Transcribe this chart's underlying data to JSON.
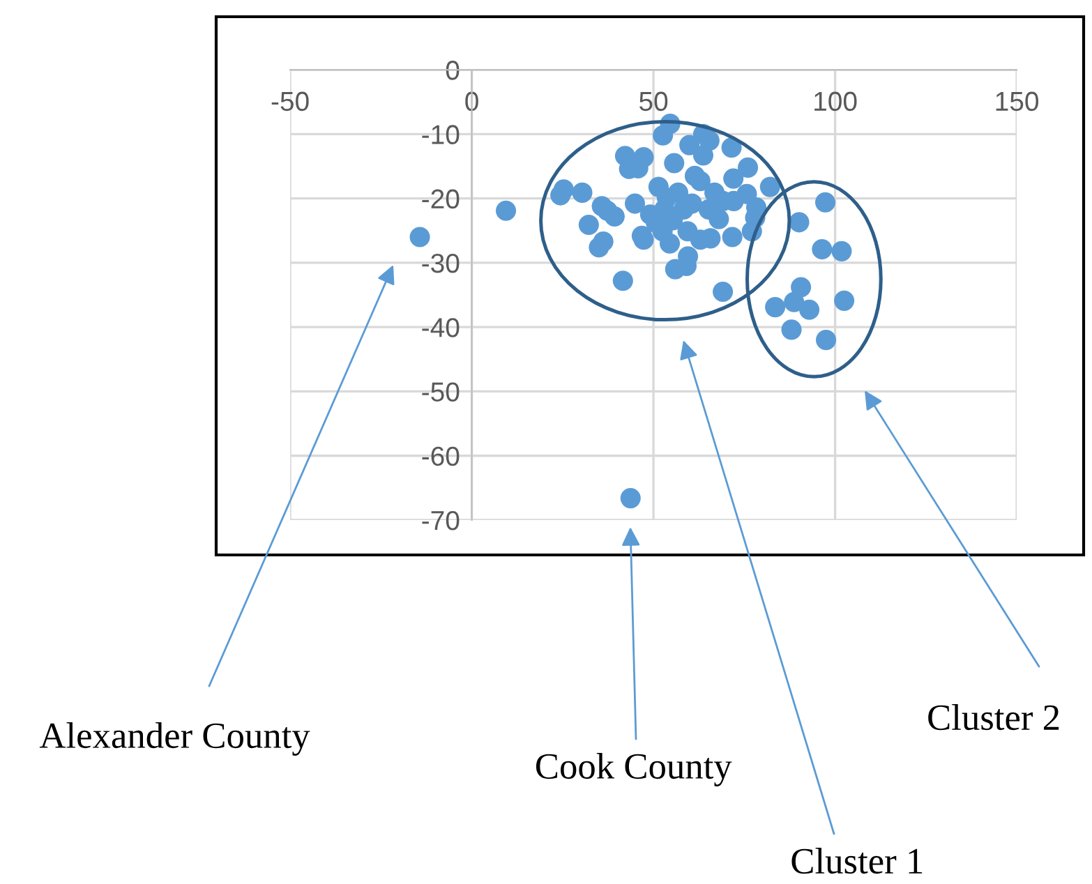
{
  "chart_data": {
    "type": "scatter",
    "color": "#5b9bd5",
    "marker": "circle",
    "grid": true,
    "legend": false,
    "xlim": [
      -50,
      150
    ],
    "ylim": [
      -70,
      0
    ],
    "xticks": [
      -50,
      0,
      50,
      100,
      150
    ],
    "yticks": [
      0,
      -10,
      -20,
      -30,
      -40,
      -50,
      -60,
      -70
    ],
    "x": [
      -14.3,
      9.4,
      43.7,
      25.3,
      24.4,
      30.4,
      32.2,
      35.8,
      37.3,
      39.3,
      36.2,
      35.0,
      41.6,
      42.2,
      43.3,
      47.3,
      45.8,
      44.9,
      46.8,
      47.3,
      54.6,
      52.6,
      55.7,
      59.9,
      63.7,
      65.4,
      63.7,
      71.5,
      76.0,
      72.0,
      82.1,
      75.7,
      78.3,
      78.0,
      77.1,
      71.7,
      68.0,
      69.1,
      65.7,
      62.9,
      59.4,
      54.5,
      59.5,
      59.1,
      56.0,
      50.7,
      49.1,
      51.4,
      53.7,
      56.8,
      60.6,
      62.9,
      61.4,
      66.8,
      69.1,
      72.1,
      58.3,
      53.0,
      55.3,
      65.2,
      52.5,
      97.3,
      90.1,
      96.4,
      101.8,
      90.6,
      88.7,
      92.9,
      83.5,
      102.5,
      88.0,
      97.5
    ],
    "values": [
      -26.0,
      -21.9,
      -66.6,
      -18.6,
      -19.5,
      -19.1,
      -24.1,
      -21.2,
      -21.9,
      -22.8,
      -26.7,
      -27.6,
      -32.8,
      -13.4,
      -15.4,
      -13.6,
      -15.3,
      -20.8,
      -25.8,
      -26.4,
      -8.4,
      -10.2,
      -14.5,
      -11.7,
      -10.0,
      -11.0,
      -13.3,
      -12.1,
      -15.2,
      -16.9,
      -18.2,
      -19.3,
      -21.4,
      -23.0,
      -25.1,
      -26.0,
      -23.2,
      -34.5,
      -26.2,
      -26.4,
      -25.1,
      -27.0,
      -29.0,
      -30.5,
      -31.0,
      -23.8,
      -22.5,
      -18.2,
      -19.9,
      -19.1,
      -20.8,
      -17.3,
      -16.5,
      -19.1,
      -20.4,
      -20.4,
      -21.7,
      -21.7,
      -23.4,
      -21.7,
      -25.1,
      -20.6,
      -23.7,
      -27.9,
      -28.2,
      -33.8,
      -36.1,
      -37.3,
      -36.9,
      -35.9,
      -40.4,
      -42.0
    ],
    "annotations": [
      "Alexander County",
      "Cook County",
      "Cluster 1",
      "Cluster 2"
    ]
  }
}
